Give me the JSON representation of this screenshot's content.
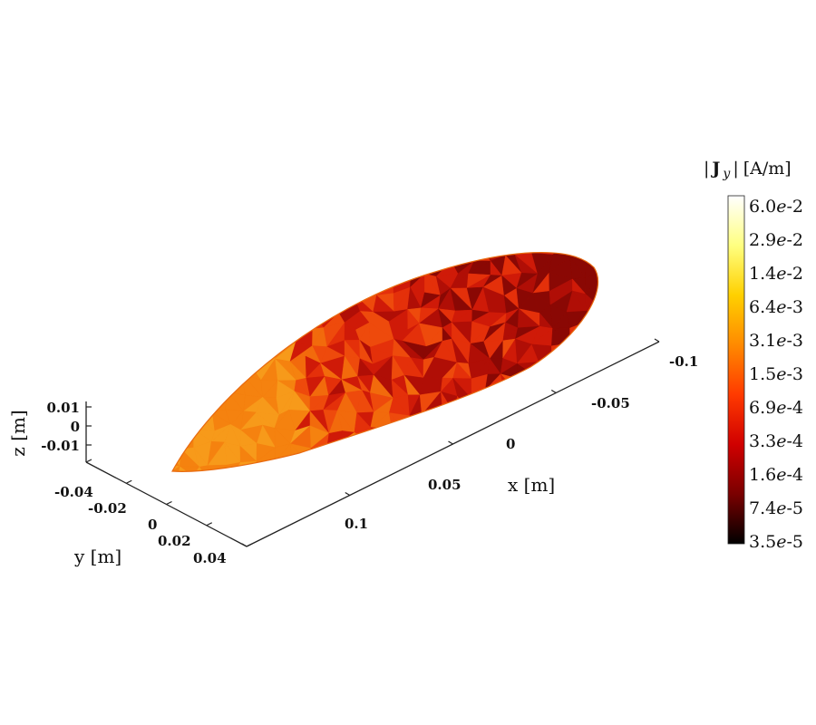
{
  "chart_data": {
    "type": "surface3d",
    "quantity": "|J_y|",
    "colorbar": {
      "title_var": "J",
      "title_sub": "y",
      "title_unit": "[A/m]",
      "scale": "log",
      "ticks": [
        {
          "mantissa": "6.0",
          "exp": "-2"
        },
        {
          "mantissa": "2.9",
          "exp": "-2"
        },
        {
          "mantissa": "1.4",
          "exp": "-2"
        },
        {
          "mantissa": "6.4",
          "exp": "-3"
        },
        {
          "mantissa": "3.1",
          "exp": "-3"
        },
        {
          "mantissa": "1.5",
          "exp": "-3"
        },
        {
          "mantissa": "6.9",
          "exp": "-4"
        },
        {
          "mantissa": "3.3",
          "exp": "-4"
        },
        {
          "mantissa": "1.6",
          "exp": "-4"
        },
        {
          "mantissa": "7.4",
          "exp": "-5"
        },
        {
          "mantissa": "3.5",
          "exp": "-5"
        }
      ],
      "range": [
        3.5e-05,
        0.06
      ],
      "colormap": [
        "#000000",
        "#7a0000",
        "#d00000",
        "#ff3a00",
        "#ff8a00",
        "#ffd000",
        "#ffff80",
        "#ffffff"
      ]
    },
    "axes": {
      "x": {
        "label": "x [m]",
        "ticks": [
          "-0.1",
          "-0.05",
          "0",
          "0.05",
          "0.1"
        ]
      },
      "y": {
        "label": "y [m]",
        "ticks": [
          "-0.04",
          "-0.02",
          "0",
          "0.02",
          "0.04"
        ]
      },
      "z": {
        "label": "z [m]",
        "ticks": [
          "0.01",
          "0",
          "-0.01"
        ]
      }
    },
    "grid": false,
    "surface": {
      "shape": "ellipsoid-like body",
      "dominant_levels": [
        "1.5e-3",
        "6.9e-4",
        "3.3e-4"
      ]
    }
  }
}
